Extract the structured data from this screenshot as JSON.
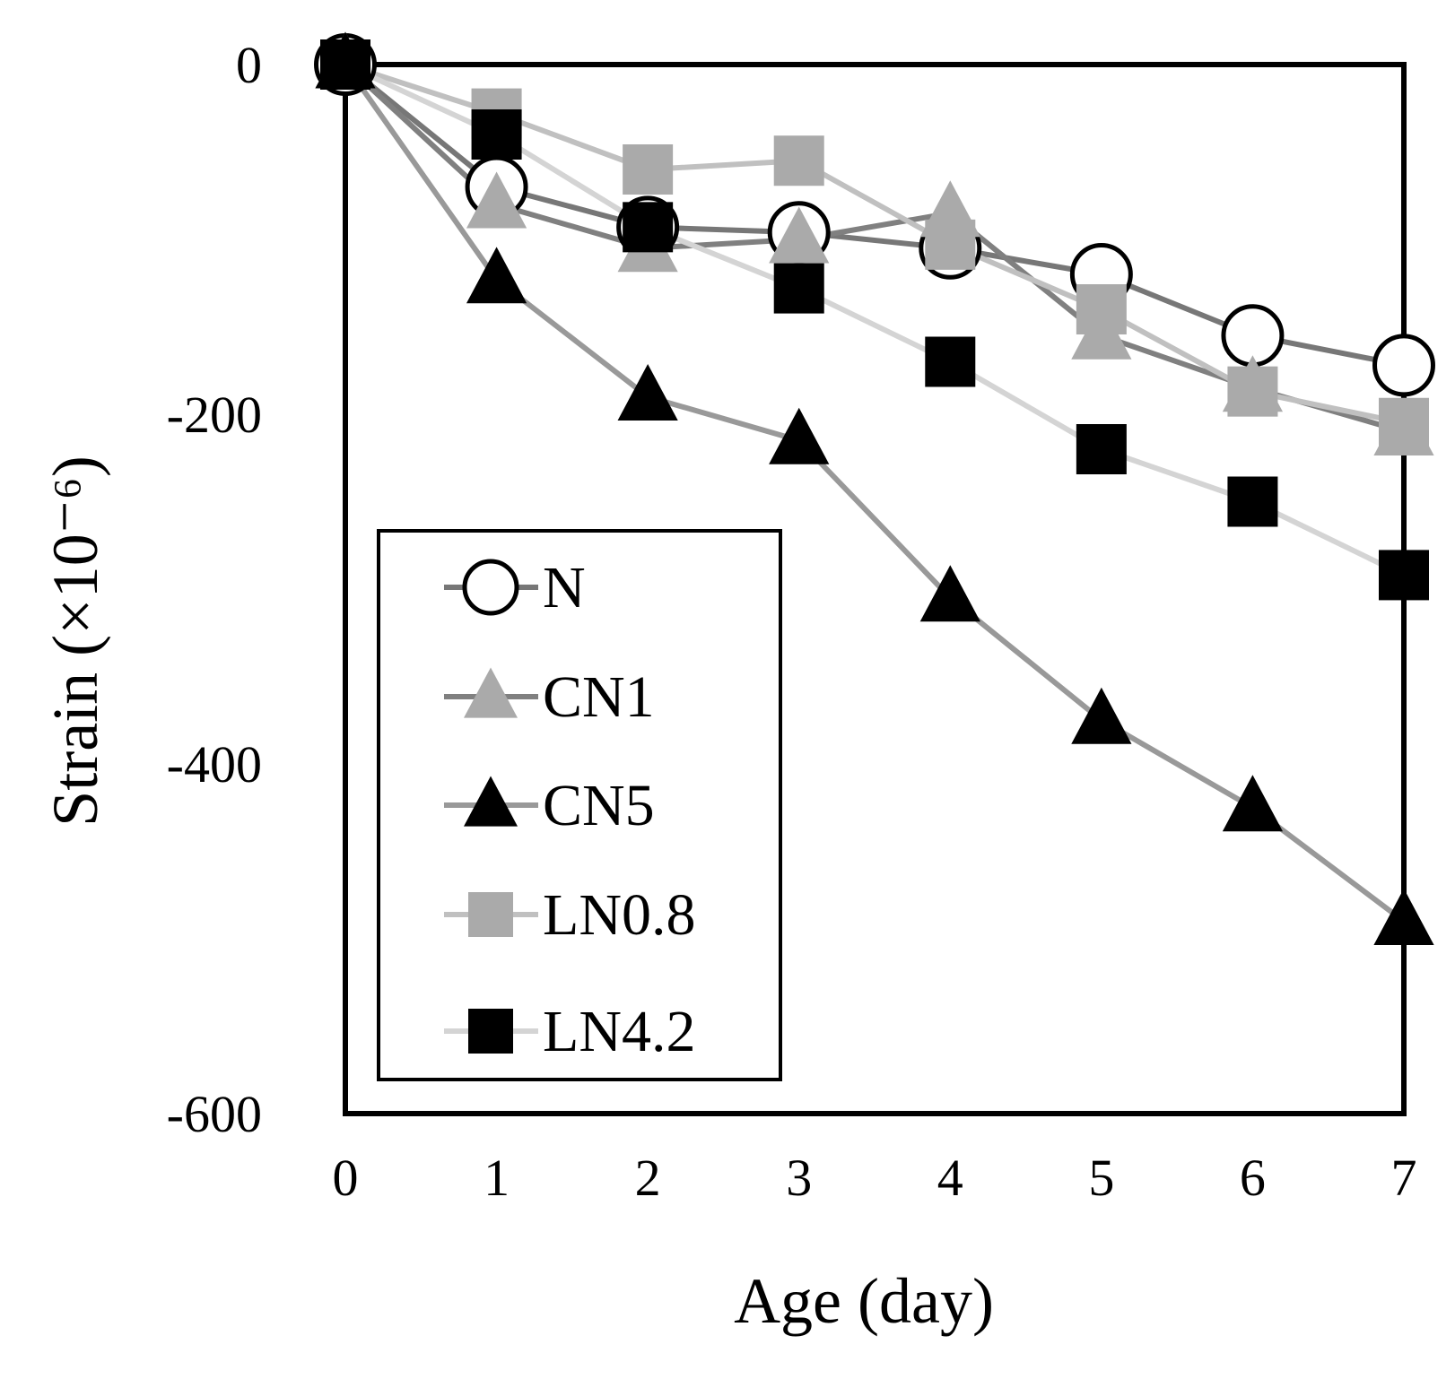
{
  "chart_data": {
    "type": "line",
    "title": "",
    "xlabel": "Age (day)",
    "ylabel": "Strain (×10⁻⁶)",
    "xlim": [
      0,
      7
    ],
    "ylim": [
      -600,
      0
    ],
    "xticks": [
      "0",
      "1",
      "2",
      "3",
      "4",
      "5",
      "6",
      "7"
    ],
    "yticks": [
      "0",
      "-200",
      "-400",
      "-600"
    ],
    "grid": false,
    "legend_position": "bottom-left",
    "x": [
      0,
      1,
      2,
      3,
      4,
      5,
      6,
      7
    ],
    "series": [
      {
        "name": "N",
        "marker": "circle-open",
        "line_color": "#777777",
        "marker_color": "#000000",
        "values": [
          0,
          -70,
          -93,
          -96,
          -105,
          -120,
          -155,
          -172
        ]
      },
      {
        "name": "CN1",
        "marker": "triangle",
        "line_color": "#808080",
        "marker_color": "#aaaaaa",
        "values": [
          0,
          -80,
          -105,
          -100,
          -85,
          -155,
          -185,
          -210
        ]
      },
      {
        "name": "CN5",
        "marker": "triangle",
        "line_color": "#999999",
        "marker_color": "#000000",
        "values": [
          0,
          -123,
          -190,
          -215,
          -305,
          -375,
          -425,
          -490
        ]
      },
      {
        "name": "LN0.8",
        "marker": "square",
        "line_color": "#c0c0c0",
        "marker_color": "#aaaaaa",
        "values": [
          0,
          -28,
          -60,
          -55,
          -103,
          -140,
          -187,
          -205
        ]
      },
      {
        "name": "LN4.2",
        "marker": "square",
        "line_color": "#d4d4d4",
        "marker_color": "#000000",
        "values": [
          0,
          -40,
          -93,
          -128,
          -170,
          -220,
          -250,
          -292
        ]
      }
    ]
  }
}
